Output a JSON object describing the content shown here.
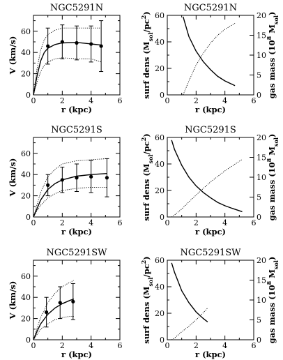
{
  "panels": [
    {
      "id": "n-rot",
      "kind": "rotation",
      "title": "NGC5291N",
      "xlabel": "r (kpc)",
      "ylabel": "V (km/s)",
      "xlim": [
        0,
        6
      ],
      "ylim": [
        0,
        75
      ],
      "xticks": [
        0,
        2,
        4,
        6
      ],
      "yticks": [
        0,
        20,
        40,
        60
      ],
      "points": [
        {
          "r": 1.0,
          "v": 46,
          "err": 17
        },
        {
          "r": 2.0,
          "v": 50,
          "err": 16
        },
        {
          "r": 3.0,
          "v": 49,
          "err": 16
        },
        {
          "r": 4.0,
          "v": 48,
          "err": 17
        },
        {
          "r": 4.7,
          "v": 46,
          "err": 24
        }
      ],
      "model": [
        [
          0,
          0
        ],
        [
          0.25,
          18
        ],
        [
          0.5,
          32
        ],
        [
          0.75,
          40
        ],
        [
          1,
          44
        ],
        [
          1.5,
          47.5
        ],
        [
          2,
          49
        ],
        [
          3,
          49.5
        ],
        [
          4,
          48
        ],
        [
          4.7,
          47
        ]
      ],
      "model_upper": [
        [
          0,
          0
        ],
        [
          0.25,
          25
        ],
        [
          0.5,
          42
        ],
        [
          0.75,
          52
        ],
        [
          1,
          57
        ],
        [
          1.5,
          61
        ],
        [
          2,
          63
        ],
        [
          3,
          63
        ],
        [
          4,
          63
        ],
        [
          4.7,
          63
        ]
      ],
      "model_lower": [
        [
          0,
          0
        ],
        [
          0.25,
          12
        ],
        [
          0.5,
          22
        ],
        [
          0.75,
          28
        ],
        [
          1,
          31
        ],
        [
          1.5,
          34
        ],
        [
          2,
          35
        ],
        [
          3,
          34
        ],
        [
          4,
          34
        ],
        [
          4.7,
          31
        ]
      ]
    },
    {
      "id": "n-gas",
      "kind": "gas",
      "title": "NGC5291N",
      "xlabel": "r (kpc)",
      "ylabel_left": "surf dens (M",
      "ylabel_left_sub": "sol",
      "ylabel_left_end": "/pc",
      "ylabel_left_sup": "2",
      "ylabel_left_close": ")",
      "ylabel_right": "gas mass (10",
      "ylabel_right_sup": "8",
      "ylabel_right_mid": " M",
      "ylabel_right_sub": "sol",
      "ylabel_right_close": ")",
      "xlim": [
        0,
        6
      ],
      "ylim": [
        0,
        60
      ],
      "ylim_right": [
        0,
        20
      ],
      "xticks": [
        0,
        2,
        4,
        6
      ],
      "yticks": [
        0,
        20,
        40,
        60
      ],
      "yticks_right": [
        0,
        5,
        10,
        15,
        20
      ],
      "surface_density": [
        [
          1.1,
          59
        ],
        [
          1.5,
          44
        ],
        [
          2,
          33
        ],
        [
          2.5,
          25
        ],
        [
          3,
          19
        ],
        [
          3.5,
          14
        ],
        [
          4,
          10.5
        ],
        [
          4.7,
          7
        ]
      ],
      "gas_mass": [
        [
          1.1,
          0
        ],
        [
          1.5,
          3.5
        ],
        [
          2,
          7.5
        ],
        [
          2.5,
          10.5
        ],
        [
          3,
          13
        ],
        [
          3.5,
          15
        ],
        [
          4,
          16.5
        ],
        [
          4.7,
          18
        ]
      ]
    },
    {
      "id": "s-rot",
      "kind": "rotation",
      "title": "NGC5291S",
      "xlabel": "r (kpc)",
      "ylabel": "V (km/s)",
      "xlim": [
        0,
        6
      ],
      "ylim": [
        0,
        75
      ],
      "xticks": [
        0,
        2,
        4,
        6
      ],
      "yticks": [
        0,
        20,
        40,
        60
      ],
      "points": [
        {
          "r": 1.0,
          "v": 30,
          "err": 10
        },
        {
          "r": 2.0,
          "v": 35,
          "err": 12
        },
        {
          "r": 3.0,
          "v": 37,
          "err": 13
        },
        {
          "r": 4.0,
          "v": 38,
          "err": 15
        },
        {
          "r": 5.1,
          "v": 37,
          "err": 18
        }
      ],
      "model": [
        [
          0,
          0
        ],
        [
          0.25,
          8
        ],
        [
          0.5,
          16
        ],
        [
          1,
          26
        ],
        [
          1.5,
          31.5
        ],
        [
          2,
          35
        ],
        [
          3,
          38.5
        ],
        [
          4,
          40
        ],
        [
          5.1,
          41
        ]
      ],
      "model_upper": [
        [
          0,
          0
        ],
        [
          0.25,
          12
        ],
        [
          0.5,
          23
        ],
        [
          1,
          38
        ],
        [
          1.5,
          45
        ],
        [
          2,
          50
        ],
        [
          3,
          53
        ],
        [
          4,
          54
        ],
        [
          5.1,
          55
        ]
      ],
      "model_lower": [
        [
          0,
          0
        ],
        [
          0.25,
          6
        ],
        [
          0.5,
          11
        ],
        [
          1,
          18
        ],
        [
          1.5,
          22
        ],
        [
          2,
          25
        ],
        [
          3,
          27
        ],
        [
          4,
          28
        ],
        [
          5.1,
          28
        ]
      ]
    },
    {
      "id": "s-gas",
      "kind": "gas",
      "title": "NGC5291S",
      "xlabel": "r (kpc)",
      "ylabel_left": "surf dens (M",
      "ylabel_left_sub": "sol",
      "ylabel_left_end": "/pc",
      "ylabel_left_sup": "2",
      "ylabel_left_close": ")",
      "ylabel_right": "gas mass (10",
      "ylabel_right_sup": "8",
      "ylabel_right_mid": " M",
      "ylabel_right_sub": "sol",
      "ylabel_right_close": ")",
      "xlim": [
        0,
        6
      ],
      "ylim": [
        0,
        60
      ],
      "ylim_right": [
        0,
        20
      ],
      "xticks": [
        0,
        2,
        4,
        6
      ],
      "yticks": [
        0,
        20,
        40,
        60
      ],
      "yticks_right": [
        0,
        5,
        10,
        15,
        20
      ],
      "surface_density": [
        [
          0.3,
          58
        ],
        [
          0.5,
          51
        ],
        [
          1,
          39
        ],
        [
          1.5,
          30
        ],
        [
          2,
          23.5
        ],
        [
          2.5,
          18.5
        ],
        [
          3,
          14.5
        ],
        [
          3.5,
          11
        ],
        [
          4,
          8.5
        ],
        [
          4.5,
          6.5
        ],
        [
          5.2,
          4
        ]
      ],
      "gas_mass": [
        [
          0.3,
          0
        ],
        [
          0.5,
          0.5
        ],
        [
          1,
          2
        ],
        [
          1.5,
          3.8
        ],
        [
          2,
          5.5
        ],
        [
          2.5,
          7.2
        ],
        [
          3,
          8.8
        ],
        [
          3.5,
          10.2
        ],
        [
          4,
          11.6
        ],
        [
          4.5,
          12.8
        ],
        [
          5.2,
          14.5
        ]
      ]
    },
    {
      "id": "sw-rot",
      "kind": "rotation",
      "title": "NGC5291SW",
      "xlabel": "r (kpc)",
      "ylabel": "V (km/s)",
      "xlim": [
        0,
        6
      ],
      "ylim": [
        0,
        75
      ],
      "xticks": [
        0,
        2,
        4,
        6
      ],
      "yticks": [
        0,
        20,
        40,
        60
      ],
      "points": [
        {
          "r": 0.9,
          "v": 26,
          "err": 14
        },
        {
          "r": 1.85,
          "v": 35,
          "err": 15
        },
        {
          "r": 2.75,
          "v": 36,
          "err": 17
        }
      ],
      "model": [
        [
          0,
          0
        ],
        [
          0.25,
          8
        ],
        [
          0.5,
          15
        ],
        [
          1,
          24
        ],
        [
          1.5,
          30
        ],
        [
          2,
          34
        ],
        [
          2.5,
          37
        ],
        [
          2.8,
          38.5
        ]
      ],
      "model_upper": [
        [
          0,
          0
        ],
        [
          0.25,
          11
        ],
        [
          0.5,
          21
        ],
        [
          1,
          35
        ],
        [
          1.5,
          44
        ],
        [
          2,
          50
        ],
        [
          2.5,
          54
        ],
        [
          2.8,
          56
        ]
      ],
      "model_lower": [
        [
          0,
          0
        ],
        [
          0.25,
          5
        ],
        [
          0.5,
          10
        ],
        [
          1,
          15
        ],
        [
          1.5,
          19
        ],
        [
          2,
          21
        ],
        [
          2.5,
          22
        ],
        [
          2.8,
          22
        ]
      ]
    },
    {
      "id": "sw-gas",
      "kind": "gas",
      "title": "NGC5291SW",
      "xlabel": "r (kpc)",
      "ylabel_left": "surf dens (M",
      "ylabel_left_sub": "sol",
      "ylabel_left_end": "/pc",
      "ylabel_left_sup": "2",
      "ylabel_left_close": ")",
      "ylabel_right": "gas mass (10",
      "ylabel_right_sup": "8",
      "ylabel_right_mid": " M",
      "ylabel_right_sub": "sol",
      "ylabel_right_close": ")",
      "xlim": [
        0,
        6
      ],
      "ylim": [
        0,
        60
      ],
      "ylim_right": [
        0,
        20
      ],
      "xticks": [
        0,
        2,
        4,
        6
      ],
      "yticks": [
        0,
        20,
        40,
        60
      ],
      "yticks_right": [
        0,
        5,
        10,
        15,
        20
      ],
      "surface_density": [
        [
          0.3,
          58
        ],
        [
          0.5,
          51
        ],
        [
          1,
          37
        ],
        [
          1.5,
          28
        ],
        [
          2,
          21
        ],
        [
          2.5,
          16
        ],
        [
          2.8,
          13.5
        ]
      ],
      "gas_mass": [
        [
          0.3,
          0
        ],
        [
          0.5,
          0.4
        ],
        [
          1,
          2
        ],
        [
          1.5,
          3.4
        ],
        [
          2,
          5
        ],
        [
          2.5,
          6.8
        ],
        [
          2.8,
          8
        ]
      ]
    }
  ]
}
